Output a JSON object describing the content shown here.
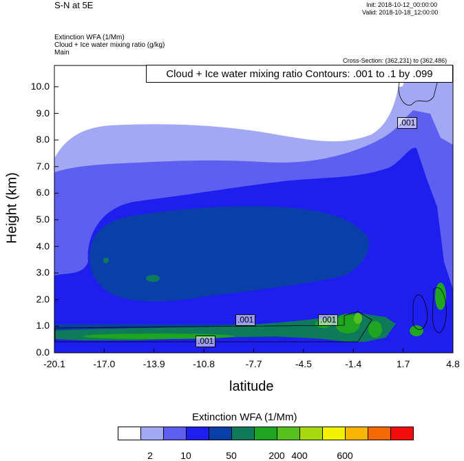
{
  "header": {
    "title": "S-N at 5E",
    "init": "Init: 2018-10-12_00:00:00",
    "valid": "Valid: 2018-10-18_12:00:00",
    "field1": "Extinction WFA   (1/Mm)",
    "field2": "Cloud + Ice water mixing ratio   (g/kg)",
    "field3": "Main",
    "cross_section": "Cross-Section: (362,231) to (362,486)"
  },
  "contour_title": "Cloud + Ice water mixing ratio Contours: .001 to .1 by .099",
  "contour_labels": [
    ".001",
    ".001",
    ".001",
    ".001"
  ],
  "colorbar": {
    "title": "Extinction WFA  (1/Mm)",
    "colors": [
      "#ffffff",
      "#a3a8f5",
      "#5c5ff0",
      "#1e1eef",
      "#0a3fa8",
      "#0f7a5a",
      "#1fa51f",
      "#55c01e",
      "#a6d910",
      "#f2f200",
      "#f7b400",
      "#f56a00",
      "#f20c0c"
    ],
    "labels": [
      "2",
      "10",
      "50",
      "200",
      "400",
      "600"
    ]
  },
  "chart_data": {
    "type": "heatmap",
    "title": "",
    "xlabel": "latitude",
    "ylabel": "Height (km)",
    "xticks": [
      "-20.1",
      "-17.0",
      "-13.9",
      "-10.8",
      "-7.7",
      "-4.5",
      "-1.4",
      "1.7",
      "4.8"
    ],
    "xlim": [
      -20.1,
      4.8
    ],
    "yticks": [
      "0.0",
      "1.0",
      "2.0",
      "3.0",
      "4.0",
      "5.0",
      "6.0",
      "7.0",
      "8.0",
      "9.0",
      "10.0"
    ],
    "ylim": [
      0,
      10.8
    ],
    "levels": [
      2,
      10,
      50,
      200,
      400,
      600
    ],
    "grid": false
  }
}
